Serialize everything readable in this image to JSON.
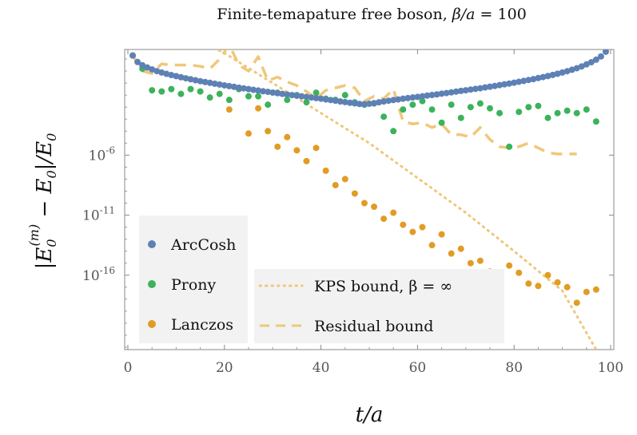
{
  "chart_data": {
    "type": "scatter",
    "title": "Finite-temapature free boson, β/a = 100",
    "xlabel": "t/a",
    "ylabel": "|E0^(m) − E0|/E0",
    "xlim": [
      0,
      100
    ],
    "ylim_log10": [
      -22.2,
      2.8
    ],
    "y_scale": "log",
    "x_ticks": [
      0,
      20,
      40,
      60,
      80,
      100
    ],
    "x_tick_labels": [
      "0",
      "20",
      "40",
      "60",
      "80",
      "100"
    ],
    "y_ticks_log10": [
      -6,
      -11,
      -16
    ],
    "y_tick_labels": [
      "10^-6",
      "10^-11",
      "10^-16"
    ],
    "legend_placement": "bottom-left",
    "colors": {
      "arccosh": "#5e81b5",
      "prony": "#3cb35a",
      "lanczos": "#e19c24",
      "bounds": "#f0c77a"
    },
    "series": [
      {
        "name": "ArcCosh",
        "style": "points",
        "color": "#5e81b5",
        "x": [
          1,
          2,
          3,
          4,
          5,
          6,
          7,
          8,
          9,
          10,
          11,
          12,
          13,
          14,
          15,
          16,
          17,
          18,
          19,
          20,
          21,
          22,
          23,
          24,
          25,
          26,
          27,
          28,
          29,
          30,
          31,
          32,
          33,
          34,
          35,
          36,
          37,
          38,
          39,
          40,
          41,
          42,
          43,
          44,
          45,
          46,
          47,
          48,
          49,
          50,
          51,
          52,
          53,
          54,
          55,
          56,
          57,
          58,
          59,
          60,
          61,
          62,
          63,
          64,
          65,
          66,
          67,
          68,
          69,
          70,
          71,
          72,
          73,
          74,
          75,
          76,
          77,
          78,
          79,
          80,
          81,
          82,
          83,
          84,
          85,
          86,
          87,
          88,
          89,
          90,
          91,
          92,
          93,
          94,
          95,
          96,
          97,
          98,
          99
        ],
        "y_log10": [
          2.3,
          1.76,
          1.49,
          1.3,
          1.14,
          1.0,
          0.88,
          0.77,
          0.67,
          0.58,
          0.49,
          0.4,
          0.32,
          0.24,
          0.16,
          0.09,
          0.02,
          -0.05,
          -0.12,
          -0.19,
          -0.25,
          -0.31,
          -0.38,
          -0.44,
          -0.5,
          -0.56,
          -0.62,
          -0.68,
          -0.73,
          -0.79,
          -0.84,
          -0.9,
          -0.95,
          -1.0,
          -1.05,
          -1.1,
          -1.15,
          -1.2,
          -1.25,
          -1.3,
          -1.36,
          -1.41,
          -1.47,
          -1.53,
          -1.58,
          -1.64,
          -1.69,
          -1.74,
          -1.75,
          -1.72,
          -1.67,
          -1.6,
          -1.53,
          -1.47,
          -1.41,
          -1.36,
          -1.3,
          -1.25,
          -1.2,
          -1.15,
          -1.1,
          -1.04,
          -0.99,
          -0.94,
          -0.88,
          -0.83,
          -0.77,
          -0.71,
          -0.65,
          -0.6,
          -0.54,
          -0.48,
          -0.43,
          -0.36,
          -0.3,
          -0.24,
          -0.17,
          -0.1,
          -0.04,
          0.03,
          0.11,
          0.18,
          0.26,
          0.33,
          0.42,
          0.5,
          0.59,
          0.68,
          0.78,
          0.88,
          0.99,
          1.11,
          1.24,
          1.39,
          1.56,
          1.74,
          1.95,
          2.22,
          2.61
        ]
      },
      {
        "name": "Prony",
        "style": "points",
        "color": "#3cb35a",
        "x": [
          1,
          3,
          5,
          7,
          9,
          11,
          13,
          15,
          17,
          19,
          21,
          23,
          25,
          27,
          29,
          31,
          33,
          35,
          37,
          39,
          41,
          43,
          45,
          47,
          49,
          51,
          53,
          55,
          57,
          59,
          61,
          63,
          65,
          67,
          69,
          71,
          73,
          75,
          77,
          79,
          81,
          83,
          85,
          87,
          89,
          91,
          93,
          95,
          97
        ],
        "y_log10": [
          2.3,
          1.2,
          -0.6,
          -0.7,
          -0.5,
          -0.9,
          -0.5,
          -0.7,
          -1.2,
          -0.9,
          -1.4,
          -0.5,
          -1.1,
          -1.1,
          -1.8,
          -0.8,
          -1.4,
          -1.0,
          -1.6,
          -0.8,
          -1.3,
          -1.4,
          -1.0,
          -1.6,
          -1.8,
          -1.7,
          -2.8,
          -4.0,
          -2.2,
          -1.8,
          -1.5,
          -2.2,
          -3.3,
          -1.8,
          -2.9,
          -2.0,
          -1.7,
          -2.1,
          -2.5,
          -5.3,
          -2.4,
          -2.0,
          -1.9,
          -2.9,
          -2.5,
          -2.3,
          -2.5,
          -2.2,
          -3.2
        ]
      },
      {
        "name": "Lanczos",
        "style": "points",
        "color": "#e19c24",
        "x": [
          1,
          21,
          25,
          27,
          29,
          31,
          33,
          35,
          37,
          39,
          41,
          43,
          45,
          47,
          49,
          51,
          53,
          55,
          57,
          59,
          61,
          63,
          65,
          67,
          69,
          71,
          73,
          75,
          77,
          79,
          81,
          83,
          85,
          87,
          89,
          91,
          93,
          95,
          97
        ],
        "y_log10": [
          2.3,
          -2.2,
          -4.2,
          -2.1,
          -4.0,
          -5.3,
          -4.5,
          -5.6,
          -6.5,
          -5.4,
          -7.3,
          -8.5,
          -8.0,
          -9.2,
          -10.0,
          -10.3,
          -11.3,
          -10.8,
          -11.8,
          -12.4,
          -12.0,
          -13.5,
          -12.6,
          -14.2,
          -13.8,
          -15.0,
          -14.8,
          -15.7,
          -16.2,
          -15.2,
          -15.8,
          -16.7,
          -16.9,
          -16.0,
          -16.6,
          -17.0,
          -18.3,
          -17.4,
          -17.2
        ]
      },
      {
        "name": "KPS bound, β = ∞",
        "style": "dotted",
        "color": "#f0c77a",
        "x": [
          10,
          20,
          30,
          40,
          50,
          60,
          70,
          80,
          90,
          97
        ],
        "y_log10": [
          4.5,
          2.5,
          0.0,
          -2.5,
          -5.0,
          -7.9,
          -10.8,
          -14.0,
          -17.3,
          -22.2
        ]
      },
      {
        "name": "Residual bound",
        "style": "dashed",
        "color": "#f0c77a",
        "x": [
          1,
          3,
          5,
          7,
          9,
          11,
          13,
          15,
          17,
          19,
          21,
          23,
          25,
          27,
          29,
          31,
          33,
          35,
          37,
          39,
          41,
          43,
          45,
          47,
          49,
          51,
          53,
          55,
          57,
          59,
          61,
          63,
          65,
          67,
          69,
          71,
          73,
          75,
          77,
          79,
          81,
          83,
          85,
          87,
          89,
          91,
          93
        ],
        "y_log10": [
          2.3,
          1.0,
          0.8,
          1.6,
          1.5,
          1.5,
          1.5,
          1.4,
          1.2,
          2.0,
          3.2,
          1.5,
          1.0,
          2.2,
          0.2,
          0.5,
          0.1,
          -0.2,
          -0.7,
          -1.3,
          -0.6,
          -0.4,
          -0.2,
          -0.4,
          -1.5,
          -1.1,
          -1.3,
          -0.5,
          -3.2,
          -3.4,
          -3.3,
          -3.7,
          -3.4,
          -4.3,
          -4.3,
          -4.5,
          -3.7,
          -4.7,
          -5.3,
          -5.4,
          -5.3,
          -5.0,
          -5.4,
          -5.8,
          -5.9,
          -5.9,
          -5.9
        ]
      }
    ],
    "legend_left": [
      {
        "label": "ArcCosh",
        "color": "#5e81b5"
      },
      {
        "label": "Prony",
        "color": "#3cb35a"
      },
      {
        "label": "Lanczos",
        "color": "#e19c24"
      }
    ],
    "legend_right": [
      {
        "label": "KPS bound, β = ∞",
        "style": "dotted"
      },
      {
        "label": "Residual bound",
        "style": "dashed"
      }
    ]
  }
}
